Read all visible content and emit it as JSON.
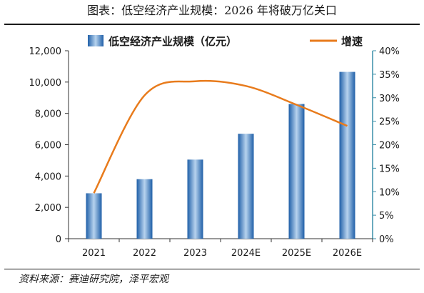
{
  "title": "图表：低空经济产业规模：2026 年将破万亿关口",
  "source": "资料来源：赛迪研究院，泽平宏观",
  "colors": {
    "bar_dark": "#1f5fa8",
    "bar_light": "#b7d3ee",
    "line": "#e87b1c",
    "axis": "#333333",
    "right_axis": "#3a8fa8"
  },
  "chart_data": {
    "type": "bar+line",
    "categories": [
      "2021",
      "2022",
      "2023",
      "2024E",
      "2025E",
      "2026E"
    ],
    "series": [
      {
        "name": "低空经济产业规模（亿元）",
        "type": "bar",
        "axis": "left",
        "values": [
          2900,
          3800,
          5050,
          6700,
          8600,
          10650
        ]
      },
      {
        "name": "增速",
        "type": "line",
        "axis": "right",
        "values": [
          0.097,
          0.305,
          0.335,
          0.325,
          0.285,
          0.24
        ]
      }
    ],
    "y_left": {
      "lim": [
        0,
        12000
      ],
      "ticks": [
        0,
        2000,
        4000,
        6000,
        8000,
        10000,
        12000
      ],
      "tick_labels": [
        "0",
        "2,000",
        "4,000",
        "6,000",
        "8,000",
        "10,000",
        "12,000"
      ]
    },
    "y_right": {
      "lim": [
        0,
        0.4
      ],
      "ticks": [
        0,
        0.05,
        0.1,
        0.15,
        0.2,
        0.25,
        0.3,
        0.35,
        0.4
      ],
      "tick_labels": [
        "0%",
        "5%",
        "10%",
        "15%",
        "20%",
        "25%",
        "30%",
        "35%",
        "40%"
      ]
    },
    "legend_position": "top",
    "grid": false
  }
}
